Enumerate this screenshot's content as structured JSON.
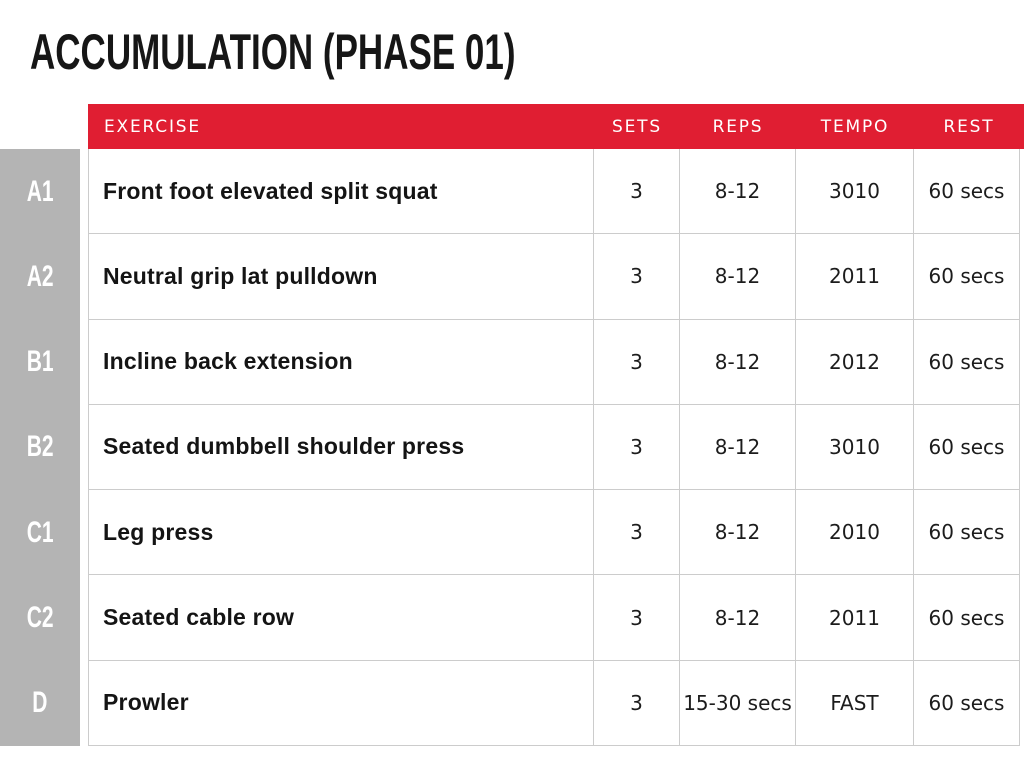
{
  "title": "ACCUMULATION (PHASE 01)",
  "table": {
    "columns": [
      "EXERCISE",
      "SETS",
      "REPS",
      "TEMPO",
      "REST"
    ],
    "rows": [
      {
        "id": "A1",
        "exercise": "Front foot elevated split squat",
        "sets": "3",
        "reps": "8-12",
        "tempo": "3010",
        "rest": "60 secs"
      },
      {
        "id": "A2",
        "exercise": "Neutral grip lat pulldown",
        "sets": "3",
        "reps": "8-12",
        "tempo": "2011",
        "rest": "60 secs"
      },
      {
        "id": "B1",
        "exercise": "Incline back extension",
        "sets": "3",
        "reps": "8-12",
        "tempo": "2012",
        "rest": "60 secs"
      },
      {
        "id": "B2",
        "exercise": "Seated dumbbell shoulder press",
        "sets": "3",
        "reps": "8-12",
        "tempo": "3010",
        "rest": "60 secs"
      },
      {
        "id": "C1",
        "exercise": "Leg press",
        "sets": "3",
        "reps": "8-12",
        "tempo": "2010",
        "rest": "60 secs"
      },
      {
        "id": "C2",
        "exercise": "Seated cable row",
        "sets": "3",
        "reps": "8-12",
        "tempo": "2011",
        "rest": "60 secs"
      },
      {
        "id": "D",
        "exercise": "Prowler",
        "sets": "3",
        "reps": "15-30 secs",
        "tempo": "FAST",
        "rest": "60 secs"
      }
    ]
  },
  "colors": {
    "header_bg": "#e01e32",
    "header_text": "#ffffff",
    "sidebar_bg": "#b4b4b4",
    "sidebar_text": "#ffffff",
    "border": "#cccccc",
    "text": "#1c1c1c"
  }
}
